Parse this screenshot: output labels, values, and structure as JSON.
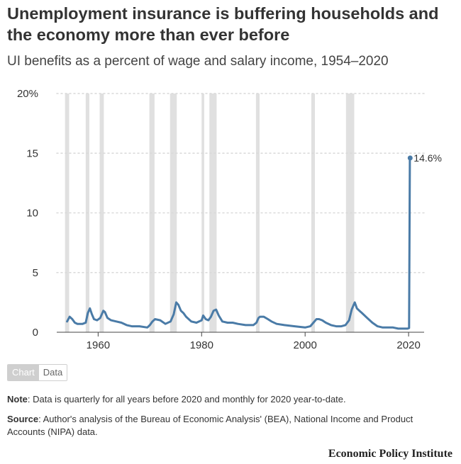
{
  "header": {
    "title": "Unemployment insurance is buffering households and the economy more than ever before",
    "subtitle": "UI benefits as a percent of wage and salary income, 1954–2020"
  },
  "toggle": {
    "chart_label": "Chart",
    "data_label": "Data"
  },
  "footer": {
    "note_label": "Note",
    "note_text": ": Data is quarterly for all years before 2020 and monthly for 2020 year-to-date.",
    "source_label": "Source",
    "source_text": ": Author's analysis of the Bureau of Economic Analysis' (BEA), National Income and Product Accounts (NIPA) data.",
    "brand": "Economic Policy Institute"
  },
  "colors": {
    "line": "#4a7ba7",
    "recession": "#e0e0e0",
    "grid": "#d9d9d9"
  },
  "chart_data": {
    "type": "line",
    "title": "",
    "xlabel": "",
    "ylabel": "",
    "xlim": [
      1952,
      2023
    ],
    "ylim": [
      0,
      20
    ],
    "x_ticks": [
      {
        "value": 1960,
        "label": "1960"
      },
      {
        "value": 1980,
        "label": "1980"
      },
      {
        "value": 2000,
        "label": "2000"
      },
      {
        "value": 2020,
        "label": "2020"
      }
    ],
    "y_ticks": [
      {
        "value": 0,
        "label": "0"
      },
      {
        "value": 5,
        "label": "5"
      },
      {
        "value": 10,
        "label": "10"
      },
      {
        "value": 15,
        "label": "15"
      },
      {
        "value": 20,
        "label": "20%"
      }
    ],
    "grid": true,
    "end_label": {
      "x": 2020.3,
      "y": 14.6,
      "text": "14.6%"
    },
    "recessions": [
      [
        1953.6,
        1954.4
      ],
      [
        1957.6,
        1958.3
      ],
      [
        1960.3,
        1961.1
      ],
      [
        1969.9,
        1970.9
      ],
      [
        1973.9,
        1975.2
      ],
      [
        1980.0,
        1980.5
      ],
      [
        1981.5,
        1982.9
      ],
      [
        1990.5,
        1991.2
      ],
      [
        2001.2,
        2001.9
      ],
      [
        2007.9,
        2009.5
      ]
    ],
    "series": [
      {
        "values": [
          [
            1954.0,
            0.9
          ],
          [
            1954.5,
            1.3
          ],
          [
            1955.0,
            1.1
          ],
          [
            1955.5,
            0.8
          ],
          [
            1956.0,
            0.7
          ],
          [
            1957.0,
            0.7
          ],
          [
            1957.6,
            0.8
          ],
          [
            1958.0,
            1.6
          ],
          [
            1958.4,
            2.0
          ],
          [
            1958.8,
            1.5
          ],
          [
            1959.2,
            1.1
          ],
          [
            1959.8,
            1.0
          ],
          [
            1960.4,
            1.2
          ],
          [
            1961.0,
            1.8
          ],
          [
            1961.3,
            1.7
          ],
          [
            1961.8,
            1.2
          ],
          [
            1962.5,
            1.0
          ],
          [
            1963.5,
            0.9
          ],
          [
            1964.5,
            0.8
          ],
          [
            1965.5,
            0.6
          ],
          [
            1966.5,
            0.5
          ],
          [
            1968.0,
            0.5
          ],
          [
            1969.5,
            0.4
          ],
          [
            1970.0,
            0.6
          ],
          [
            1970.5,
            0.9
          ],
          [
            1971.0,
            1.1
          ],
          [
            1972.0,
            1.0
          ],
          [
            1973.0,
            0.7
          ],
          [
            1974.0,
            0.9
          ],
          [
            1974.6,
            1.5
          ],
          [
            1975.1,
            2.5
          ],
          [
            1975.5,
            2.3
          ],
          [
            1976.0,
            1.8
          ],
          [
            1976.5,
            1.6
          ],
          [
            1977.0,
            1.3
          ],
          [
            1978.0,
            0.9
          ],
          [
            1979.0,
            0.8
          ],
          [
            1980.0,
            1.0
          ],
          [
            1980.3,
            1.4
          ],
          [
            1980.8,
            1.1
          ],
          [
            1981.3,
            1.0
          ],
          [
            1981.8,
            1.3
          ],
          [
            1982.3,
            1.8
          ],
          [
            1982.8,
            1.9
          ],
          [
            1983.3,
            1.4
          ],
          [
            1984.0,
            0.9
          ],
          [
            1985.0,
            0.8
          ],
          [
            1986.0,
            0.8
          ],
          [
            1987.0,
            0.7
          ],
          [
            1988.5,
            0.6
          ],
          [
            1990.0,
            0.6
          ],
          [
            1990.6,
            0.8
          ],
          [
            1991.0,
            1.2
          ],
          [
            1991.3,
            1.3
          ],
          [
            1992.0,
            1.3
          ],
          [
            1992.8,
            1.1
          ],
          [
            1993.5,
            0.9
          ],
          [
            1994.5,
            0.7
          ],
          [
            1996.0,
            0.6
          ],
          [
            1998.0,
            0.5
          ],
          [
            2000.0,
            0.4
          ],
          [
            2001.0,
            0.5
          ],
          [
            2001.6,
            0.8
          ],
          [
            2002.2,
            1.1
          ],
          [
            2002.7,
            1.1
          ],
          [
            2003.3,
            1.0
          ],
          [
            2004.0,
            0.8
          ],
          [
            2005.0,
            0.6
          ],
          [
            2006.0,
            0.5
          ],
          [
            2007.0,
            0.5
          ],
          [
            2007.8,
            0.6
          ],
          [
            2008.5,
            1.0
          ],
          [
            2009.0,
            1.9
          ],
          [
            2009.3,
            2.2
          ],
          [
            2009.6,
            2.5
          ],
          [
            2010.0,
            2.0
          ],
          [
            2010.5,
            1.8
          ],
          [
            2011.0,
            1.6
          ],
          [
            2012.0,
            1.2
          ],
          [
            2013.0,
            0.8
          ],
          [
            2014.0,
            0.5
          ],
          [
            2015.0,
            0.4
          ],
          [
            2016.0,
            0.4
          ],
          [
            2017.0,
            0.4
          ],
          [
            2018.0,
            0.3
          ],
          [
            2019.0,
            0.3
          ],
          [
            2019.8,
            0.3
          ],
          [
            2020.1,
            0.35
          ],
          [
            2020.25,
            14.6
          ]
        ]
      }
    ]
  }
}
